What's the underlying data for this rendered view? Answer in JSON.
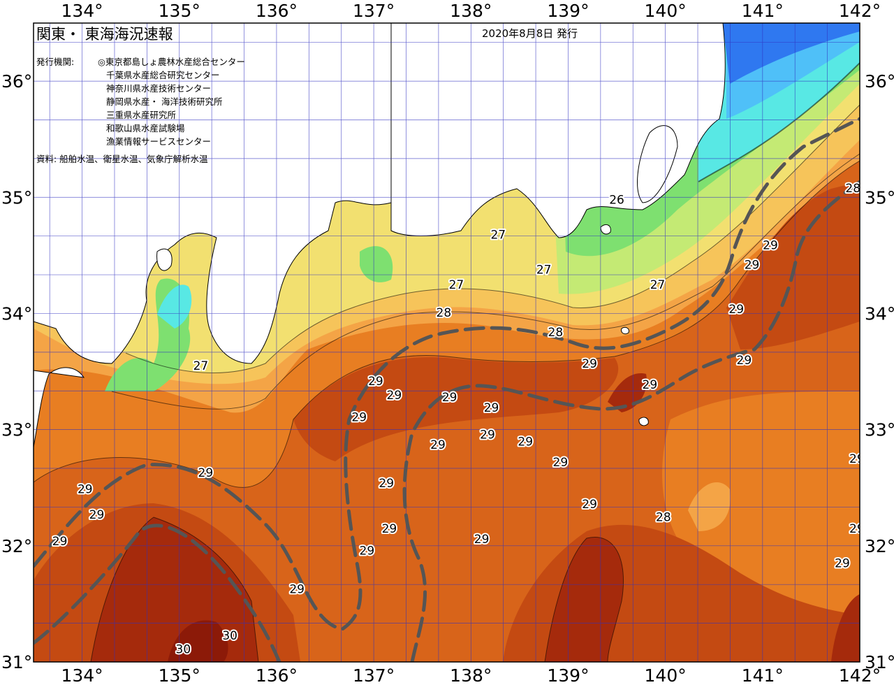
{
  "header": {
    "title": "関東・ 東海海況速報",
    "issue_date": "2020年8月8日 発行"
  },
  "info": {
    "agencies_label": "発行機関:",
    "agencies": [
      "◎東京都島しょ農林水産総合センター",
      "千葉県水産総合研究センター",
      "神奈川県水産技術センター",
      "静岡県水産・ 海洋技術研究所",
      "三重県水産研究所",
      "和歌山県水産試験場",
      "漁業情報サービスセンター"
    ],
    "source": "資料: 船舶水温、衛星水温、気象庁解析水温"
  },
  "axes": {
    "longitude_ticks": [
      "134°",
      "135°",
      "136°",
      "137°",
      "138°",
      "139°",
      "140°",
      "141°",
      "142°"
    ],
    "latitude_ticks": [
      "36°",
      "35°",
      "34°",
      "33°",
      "32°",
      "31°"
    ],
    "lon_range": [
      133.5,
      142
    ],
    "lat_range": [
      31,
      36.5
    ]
  },
  "temperature_labels": [
    {
      "value": "26",
      "lon": 139.5,
      "lat": 34.98
    },
    {
      "value": "27",
      "lon": 138.28,
      "lat": 34.68
    },
    {
      "value": "27",
      "lon": 138.75,
      "lat": 34.38
    },
    {
      "value": "27",
      "lon": 137.85,
      "lat": 34.25
    },
    {
      "value": "27",
      "lon": 139.92,
      "lat": 34.25
    },
    {
      "value": "27",
      "lon": 135.22,
      "lat": 33.55
    },
    {
      "value": "28",
      "lon": 137.72,
      "lat": 34.01
    },
    {
      "value": "28",
      "lon": 138.87,
      "lat": 33.84
    },
    {
      "value": "28",
      "lon": 141.93,
      "lat": 35.08
    },
    {
      "value": "28",
      "lon": 139.98,
      "lat": 32.25
    },
    {
      "value": "29",
      "lon": 141.08,
      "lat": 34.59
    },
    {
      "value": "29",
      "lon": 140.89,
      "lat": 34.42
    },
    {
      "value": "29",
      "lon": 140.73,
      "lat": 34.04
    },
    {
      "value": "29",
      "lon": 140.81,
      "lat": 33.6
    },
    {
      "value": "29",
      "lon": 139.22,
      "lat": 33.57
    },
    {
      "value": "29",
      "lon": 139.84,
      "lat": 33.39
    },
    {
      "value": "29",
      "lon": 137.02,
      "lat": 33.42
    },
    {
      "value": "29",
      "lon": 137.21,
      "lat": 33.3
    },
    {
      "value": "29",
      "lon": 137.78,
      "lat": 33.28
    },
    {
      "value": "29",
      "lon": 138.21,
      "lat": 33.19
    },
    {
      "value": "29",
      "lon": 136.85,
      "lat": 33.11
    },
    {
      "value": "29",
      "lon": 138.17,
      "lat": 32.96
    },
    {
      "value": "29",
      "lon": 138.56,
      "lat": 32.9
    },
    {
      "value": "29",
      "lon": 137.66,
      "lat": 32.87
    },
    {
      "value": "29",
      "lon": 138.92,
      "lat": 32.72
    },
    {
      "value": "29",
      "lon": 135.27,
      "lat": 32.63
    },
    {
      "value": "29",
      "lon": 134.03,
      "lat": 32.49
    },
    {
      "value": "29",
      "lon": 134.15,
      "lat": 32.27
    },
    {
      "value": "29",
      "lon": 137.13,
      "lat": 32.54
    },
    {
      "value": "29",
      "lon": 139.22,
      "lat": 32.36
    },
    {
      "value": "29",
      "lon": 137.16,
      "lat": 32.15
    },
    {
      "value": "29",
      "lon": 138.11,
      "lat": 32.06
    },
    {
      "value": "29",
      "lon": 133.77,
      "lat": 32.04
    },
    {
      "value": "29",
      "lon": 136.93,
      "lat": 31.96
    },
    {
      "value": "29",
      "lon": 136.21,
      "lat": 31.63
    },
    {
      "value": "29",
      "lon": 141.82,
      "lat": 31.85
    },
    {
      "value": "29",
      "lon": 141.97,
      "lat": 32.75
    },
    {
      "value": "29",
      "lon": 141.97,
      "lat": 32.15
    },
    {
      "value": "30",
      "lon": 135.52,
      "lat": 31.23
    },
    {
      "value": "30",
      "lon": 135.04,
      "lat": 31.11
    }
  ],
  "colors": {
    "temp_23": "#2f78f0",
    "temp_24": "#4fc0f8",
    "temp_25": "#58e8e4",
    "temp_26": "#7ee070",
    "temp_26_5": "#c4ea74",
    "temp_27": "#f2e070",
    "temp_27_5": "#f6c45a",
    "temp_28": "#f4a446",
    "temp_28_5": "#e87e22",
    "temp_29": "#d8641a",
    "temp_29_5": "#c44a12",
    "temp_30": "#a52a0c",
    "temp_30_5": "#8c1a08",
    "land": "#ffffff",
    "grid": "#3030c0",
    "kuroshio_axis": "#555555"
  }
}
